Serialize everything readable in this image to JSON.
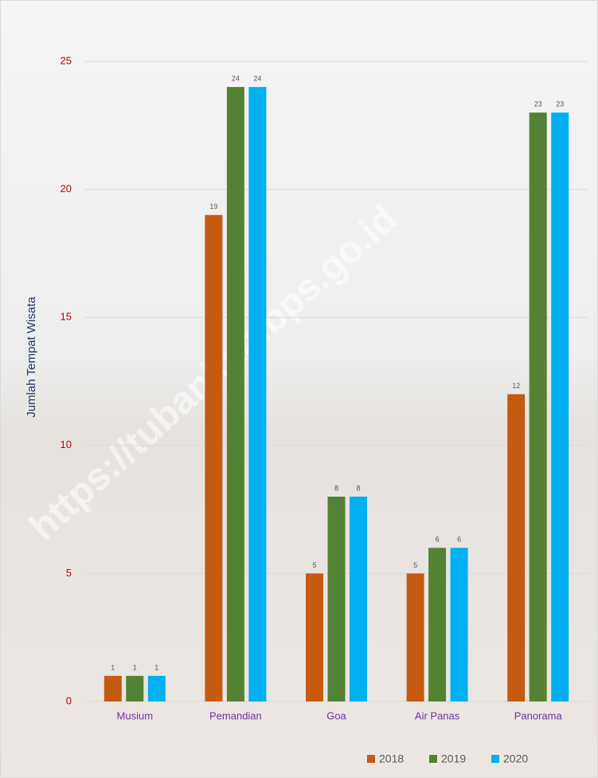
{
  "chart_data": {
    "type": "bar",
    "y_label": "Jumlah Tempat Wisata",
    "watermark": "https://tubankab.bps.go.id",
    "categories": [
      "Musium",
      "Pemandian",
      "Goa",
      "Air Panas",
      "Panorama"
    ],
    "series": [
      {
        "name": "2018",
        "color": "#c55a11",
        "values": [
          1,
          19,
          5,
          5,
          12
        ]
      },
      {
        "name": "2019",
        "color": "#548235",
        "values": [
          1,
          24,
          8,
          6,
          23
        ]
      },
      {
        "name": "2020",
        "color": "#00b0f0",
        "values": [
          1,
          24,
          8,
          6,
          23
        ]
      }
    ],
    "ylim": [
      0,
      25
    ],
    "yticks": [
      0,
      5,
      10,
      15,
      20,
      25
    ],
    "grid": true,
    "legend": "bottom"
  }
}
